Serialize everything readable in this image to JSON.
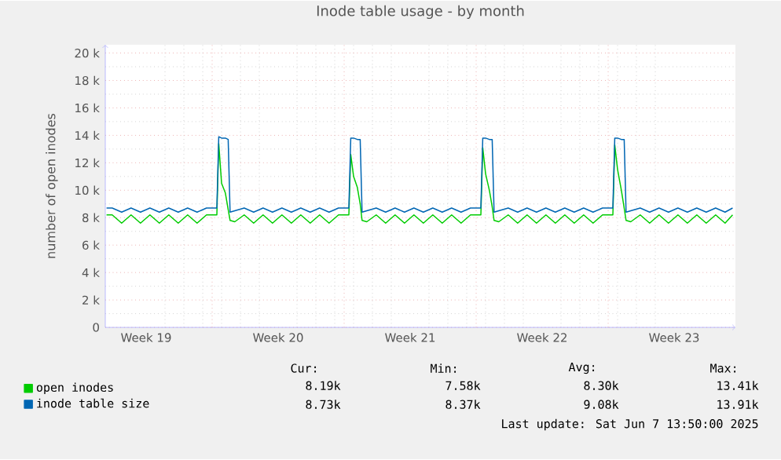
{
  "chart_data": {
    "type": "line",
    "title": "Inode table usage - by month",
    "ylabel": "number of open inodes",
    "x": [
      "2025-05-05T09:36",
      "2025-05-05T16:48",
      "2025-05-06T04:48",
      "2025-05-06T16:48",
      "2025-05-07T04:48",
      "2025-05-07T16:48",
      "2025-05-08T04:48",
      "2025-05-08T16:48",
      "2025-05-09T04:48",
      "2025-05-09T16:48",
      "2025-05-10T04:48",
      "2025-05-10T16:48",
      "2025-05-11T06:00",
      "2025-05-11T08:24",
      "2025-05-11T12:00",
      "2025-05-11T16:48",
      "2025-05-11T20:24",
      "2025-05-11T22:48",
      "2025-05-12T04:48",
      "2025-05-12T16:48",
      "2025-05-13T04:48",
      "2025-05-13T16:48",
      "2025-05-14T04:48",
      "2025-05-14T16:48",
      "2025-05-15T04:48",
      "2025-05-15T16:48",
      "2025-05-16T04:48",
      "2025-05-16T16:48",
      "2025-05-17T04:48",
      "2025-05-17T16:48",
      "2025-05-18T06:00",
      "2025-05-18T08:24",
      "2025-05-18T12:00",
      "2025-05-18T16:48",
      "2025-05-18T20:24",
      "2025-05-18T22:48",
      "2025-05-19T04:48",
      "2025-05-19T16:48",
      "2025-05-20T04:48",
      "2025-05-20T16:48",
      "2025-05-21T04:48",
      "2025-05-21T16:48",
      "2025-05-22T04:48",
      "2025-05-22T16:48",
      "2025-05-23T04:48",
      "2025-05-23T16:48",
      "2025-05-24T04:48",
      "2025-05-24T16:48",
      "2025-05-25T06:00",
      "2025-05-25T08:24",
      "2025-05-25T12:00",
      "2025-05-25T16:48",
      "2025-05-25T20:24",
      "2025-05-25T22:48",
      "2025-05-26T04:48",
      "2025-05-26T16:48",
      "2025-05-27T04:48",
      "2025-05-27T16:48",
      "2025-05-28T04:48",
      "2025-05-28T16:48",
      "2025-05-29T04:48",
      "2025-05-29T16:48",
      "2025-05-30T04:48",
      "2025-05-30T16:48",
      "2025-05-31T04:48",
      "2025-05-31T16:48",
      "2025-06-01T06:00",
      "2025-06-01T08:24",
      "2025-06-01T12:00",
      "2025-06-01T16:48",
      "2025-06-01T20:24",
      "2025-06-01T22:48",
      "2025-06-02T04:48",
      "2025-06-02T16:48",
      "2025-06-03T04:48",
      "2025-06-03T16:48",
      "2025-06-04T04:48",
      "2025-06-04T16:48",
      "2025-06-05T04:48",
      "2025-06-05T16:48",
      "2025-06-06T04:48",
      "2025-06-06T16:48",
      "2025-06-07T04:48",
      "2025-06-07T14:24"
    ],
    "series": [
      {
        "name": "open inodes",
        "color": "#00cc00",
        "values": [
          8200,
          8200,
          7600,
          8200,
          7600,
          8200,
          7600,
          8200,
          7600,
          8200,
          7600,
          8200,
          8200,
          13400,
          10500,
          9800,
          8600,
          7800,
          7700,
          8200,
          7600,
          8200,
          7600,
          8200,
          7600,
          8200,
          7600,
          8200,
          7600,
          8200,
          8200,
          12600,
          11000,
          10200,
          9000,
          7800,
          7700,
          8200,
          7600,
          8200,
          7600,
          8200,
          7600,
          8200,
          7600,
          8200,
          7600,
          8200,
          8200,
          13100,
          11200,
          10000,
          8800,
          7800,
          7700,
          8200,
          7600,
          8200,
          7600,
          8200,
          7600,
          8200,
          7600,
          8200,
          7600,
          8200,
          8200,
          13300,
          11500,
          10000,
          8700,
          7800,
          7700,
          8200,
          7600,
          8200,
          7600,
          8200,
          7600,
          8200,
          7600,
          8200,
          7600,
          8200
        ]
      },
      {
        "name": "inode table size",
        "color": "#0066b3",
        "values": [
          8700,
          8700,
          8400,
          8700,
          8400,
          8700,
          8400,
          8700,
          8400,
          8700,
          8400,
          8700,
          8700,
          13900,
          13800,
          13800,
          13700,
          8400,
          8500,
          8700,
          8400,
          8700,
          8400,
          8700,
          8400,
          8700,
          8400,
          8700,
          8400,
          8700,
          8700,
          13800,
          13800,
          13700,
          13700,
          8400,
          8500,
          8700,
          8400,
          8700,
          8400,
          8700,
          8400,
          8700,
          8400,
          8700,
          8400,
          8700,
          8700,
          13800,
          13800,
          13700,
          13700,
          8400,
          8500,
          8700,
          8400,
          8700,
          8400,
          8700,
          8400,
          8700,
          8400,
          8700,
          8400,
          8700,
          8700,
          13800,
          13800,
          13700,
          13700,
          8400,
          8500,
          8700,
          8400,
          8700,
          8400,
          8700,
          8400,
          8700,
          8400,
          8700,
          8400,
          8700
        ]
      }
    ],
    "xlim": [
      "2025-05-05T08:00",
      "2025-06-07T18:00"
    ],
    "xticks": [
      {
        "value": "2025-05-07T12:00",
        "label": "Week 19"
      },
      {
        "value": "2025-05-11",
        "label": null
      },
      {
        "value": "2025-05-14T12:00",
        "label": "Week 20"
      },
      {
        "value": "2025-05-18",
        "label": null
      },
      {
        "value": "2025-05-21T12:00",
        "label": "Week 21"
      },
      {
        "value": "2025-05-25",
        "label": null
      },
      {
        "value": "2025-05-28T12:00",
        "label": "Week 22"
      },
      {
        "value": "2025-06-01",
        "label": null
      },
      {
        "value": "2025-06-04T12:00",
        "label": "Week 23"
      }
    ],
    "ylim": [
      0,
      20600
    ],
    "yticks": [
      0,
      {
        "value": 2000,
        "label": "2 k"
      },
      {
        "value": 4000,
        "label": "4 k"
      },
      {
        "value": 6000,
        "label": "6 k"
      },
      {
        "value": 8000,
        "label": "8 k"
      },
      {
        "value": 10000,
        "label": "10 k"
      },
      {
        "value": 12000,
        "label": "12 k"
      },
      {
        "value": 14000,
        "label": "14 k"
      },
      {
        "value": 16000,
        "label": "16 k"
      },
      {
        "value": 18000,
        "label": "18 k"
      },
      {
        "value": 20000,
        "label": "20 k"
      }
    ],
    "grid": true,
    "legend": "bottom left",
    "annotations": [
      "Cur:",
      "Min:",
      "Avg:",
      "Max:",
      "8.19k",
      "7.58k",
      "8.30k",
      "13.41k",
      "8.73k",
      "8.37k",
      "9.08k",
      "13.91k",
      "Last update: Sat Jun  7 13:50:00 2025"
    ]
  }
}
